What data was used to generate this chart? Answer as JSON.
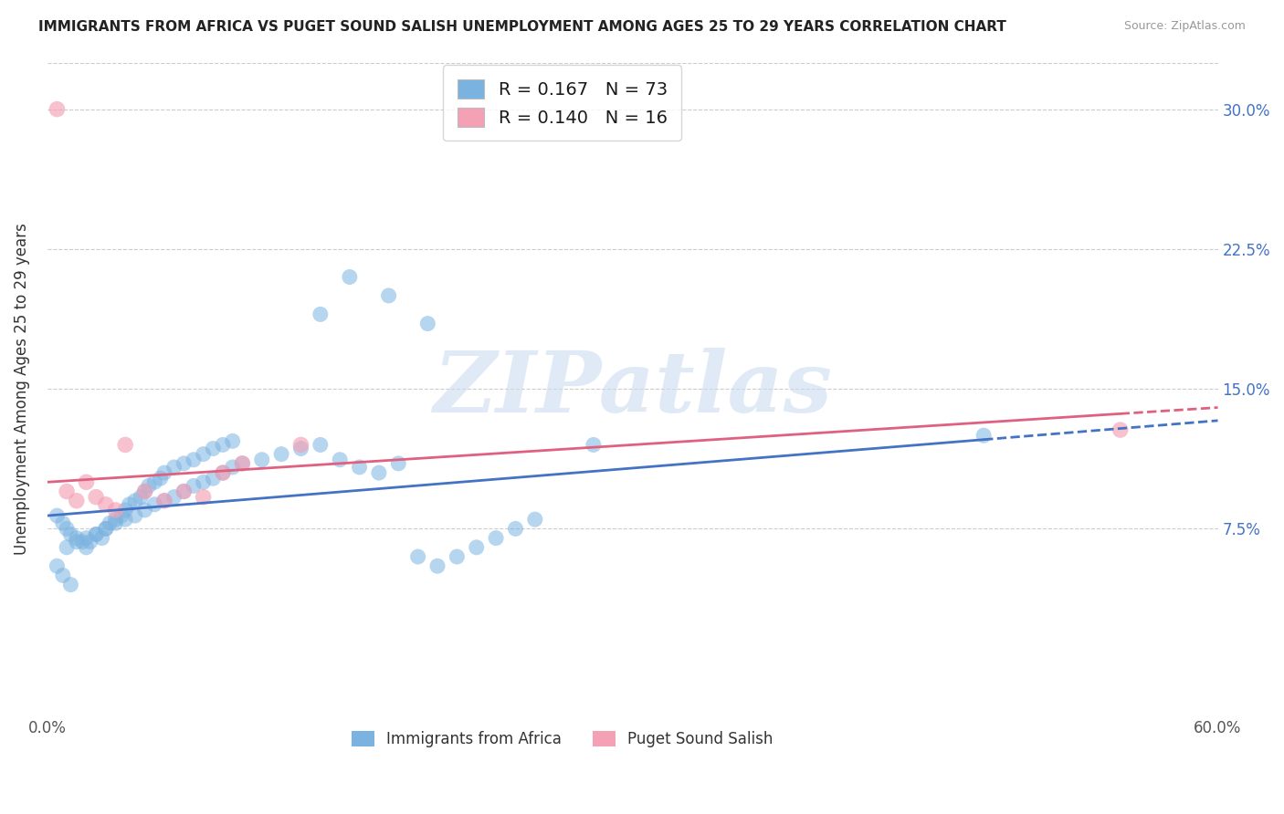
{
  "title": "IMMIGRANTS FROM AFRICA VS PUGET SOUND SALISH UNEMPLOYMENT AMONG AGES 25 TO 29 YEARS CORRELATION CHART",
  "source": "Source: ZipAtlas.com",
  "ylabel_label": "Unemployment Among Ages 25 to 29 years",
  "xlim": [
    0,
    0.6
  ],
  "ylim": [
    -0.025,
    0.325
  ],
  "blue_R": 0.167,
  "blue_N": 73,
  "pink_R": 0.14,
  "pink_N": 16,
  "blue_color": "#7ab3e0",
  "pink_color": "#f4a0b5",
  "blue_line_color": "#4472c4",
  "pink_line_color": "#e06080",
  "watermark": "ZIPatlas",
  "y_tick_vals": [
    0.075,
    0.15,
    0.225,
    0.3
  ],
  "y_tick_labels": [
    "7.5%",
    "15.0%",
    "22.5%",
    "30.0%"
  ],
  "blue_line_x0": 0.0,
  "blue_line_y0": 0.082,
  "blue_line_x1": 0.6,
  "blue_line_y1": 0.133,
  "blue_line_solid_end": 0.48,
  "pink_line_x0": 0.0,
  "pink_line_y0": 0.1,
  "pink_line_x1": 0.6,
  "pink_line_y1": 0.14,
  "pink_line_solid_end": 0.55,
  "blue_scatter_x": [
    0.005,
    0.008,
    0.01,
    0.012,
    0.015,
    0.018,
    0.02,
    0.022,
    0.025,
    0.028,
    0.03,
    0.032,
    0.035,
    0.038,
    0.04,
    0.042,
    0.045,
    0.048,
    0.05,
    0.052,
    0.055,
    0.058,
    0.06,
    0.065,
    0.07,
    0.075,
    0.08,
    0.085,
    0.09,
    0.095,
    0.01,
    0.015,
    0.02,
    0.025,
    0.03,
    0.035,
    0.04,
    0.045,
    0.05,
    0.055,
    0.06,
    0.065,
    0.07,
    0.075,
    0.08,
    0.085,
    0.09,
    0.095,
    0.1,
    0.11,
    0.12,
    0.13,
    0.14,
    0.15,
    0.16,
    0.17,
    0.18,
    0.19,
    0.2,
    0.21,
    0.22,
    0.23,
    0.24,
    0.25,
    0.14,
    0.155,
    0.175,
    0.195,
    0.28,
    0.48,
    0.005,
    0.008,
    0.012
  ],
  "blue_scatter_y": [
    0.082,
    0.078,
    0.075,
    0.072,
    0.07,
    0.068,
    0.065,
    0.068,
    0.072,
    0.07,
    0.075,
    0.078,
    0.08,
    0.082,
    0.085,
    0.088,
    0.09,
    0.092,
    0.095,
    0.098,
    0.1,
    0.102,
    0.105,
    0.108,
    0.11,
    0.112,
    0.115,
    0.118,
    0.12,
    0.122,
    0.065,
    0.068,
    0.07,
    0.072,
    0.075,
    0.078,
    0.08,
    0.082,
    0.085,
    0.088,
    0.09,
    0.092,
    0.095,
    0.098,
    0.1,
    0.102,
    0.105,
    0.108,
    0.11,
    0.112,
    0.115,
    0.118,
    0.12,
    0.112,
    0.108,
    0.105,
    0.11,
    0.06,
    0.055,
    0.06,
    0.065,
    0.07,
    0.075,
    0.08,
    0.19,
    0.21,
    0.2,
    0.185,
    0.12,
    0.125,
    0.055,
    0.05,
    0.045
  ],
  "pink_scatter_x": [
    0.005,
    0.01,
    0.015,
    0.02,
    0.025,
    0.03,
    0.035,
    0.04,
    0.05,
    0.06,
    0.07,
    0.08,
    0.09,
    0.1,
    0.13,
    0.55
  ],
  "pink_scatter_y": [
    0.3,
    0.095,
    0.09,
    0.1,
    0.092,
    0.088,
    0.085,
    0.12,
    0.095,
    0.09,
    0.095,
    0.092,
    0.105,
    0.11,
    0.12,
    0.128
  ]
}
